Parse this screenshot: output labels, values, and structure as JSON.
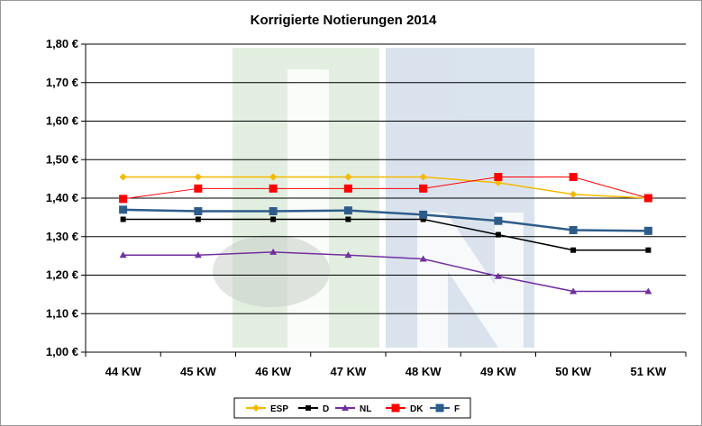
{
  "chart_data": {
    "type": "line",
    "title": "Korrigierte Notierungen 2014",
    "categories": [
      "44 KW",
      "45 KW",
      "46 KW",
      "47 KW",
      "48 KW",
      "49 KW",
      "50 KW",
      "51 KW"
    ],
    "ylim": [
      1.0,
      1.8
    ],
    "yticks": [
      1.0,
      1.1,
      1.2,
      1.3,
      1.4,
      1.5,
      1.6,
      1.7,
      1.8
    ],
    "ytick_labels": [
      "1,00 €",
      "1,10 €",
      "1,20 €",
      "1,30 €",
      "1,40 €",
      "1,50 €",
      "1,60 €",
      "1,70 €",
      "1,80 €"
    ],
    "grid": true,
    "legend_position": "bottom",
    "series": [
      {
        "name": "ESP",
        "color": "#F5B800",
        "marker": "diamond",
        "values": [
          1.455,
          1.455,
          1.455,
          1.455,
          1.455,
          1.44,
          1.41,
          1.4
        ]
      },
      {
        "name": "D",
        "color": "#000000",
        "marker": "square",
        "values": [
          1.345,
          1.345,
          1.345,
          1.345,
          1.345,
          1.305,
          1.265,
          1.265
        ]
      },
      {
        "name": "NL",
        "color": "#7030A0",
        "marker": "triangle",
        "values": [
          1.252,
          1.252,
          1.26,
          1.252,
          1.242,
          1.197,
          1.158,
          1.158
        ]
      },
      {
        "name": "DK",
        "color": "#FF0000",
        "marker": "square",
        "values": [
          1.398,
          1.425,
          1.425,
          1.425,
          1.425,
          1.455,
          1.455,
          1.4
        ]
      },
      {
        "name": "F",
        "color": "#2E5C8A",
        "marker": "square",
        "values": [
          1.37,
          1.366,
          1.366,
          1.368,
          1.357,
          1.341,
          1.317,
          1.315
        ]
      }
    ]
  }
}
